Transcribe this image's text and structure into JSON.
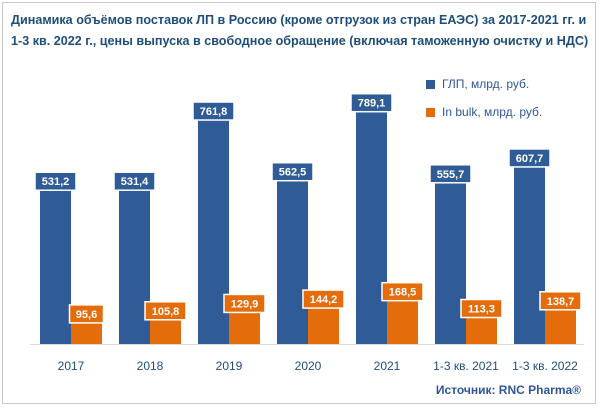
{
  "chart_data": {
    "type": "bar",
    "title": "Динамика объёмов поставок ЛП в Россию (кроме отгрузок из стран ЕАЭС) за 2017-2021 гг. и 1-3 кв. 2022 г., цены выпуска в свободное обращение (включая таможенную очистку и НДС)",
    "categories": [
      "2017",
      "2018",
      "2019",
      "2020",
      "2021",
      "1-3 кв. 2021",
      "1-3 кв. 2022"
    ],
    "series": [
      {
        "name": "ГЛП, млрд. руб.",
        "color": "#2f5b96",
        "values": [
          531.2,
          531.4,
          761.8,
          562.5,
          789.1,
          555.7,
          607.7
        ],
        "labels": [
          "531,2",
          "531,4",
          "761,8",
          "562,5",
          "789,1",
          "555,7",
          "607,7"
        ]
      },
      {
        "name": "In bulk, млрд. руб.",
        "color": "#e46c0a",
        "values": [
          95.6,
          105.8,
          129.9,
          144.2,
          168.5,
          113.3,
          138.7
        ],
        "labels": [
          "95,6",
          "105,8",
          "129,9",
          "144,2",
          "168,5",
          "113,3",
          "138,7"
        ]
      }
    ],
    "legend_position": "top-right",
    "grid": false
  },
  "source": "Источник: RNC Pharma®"
}
